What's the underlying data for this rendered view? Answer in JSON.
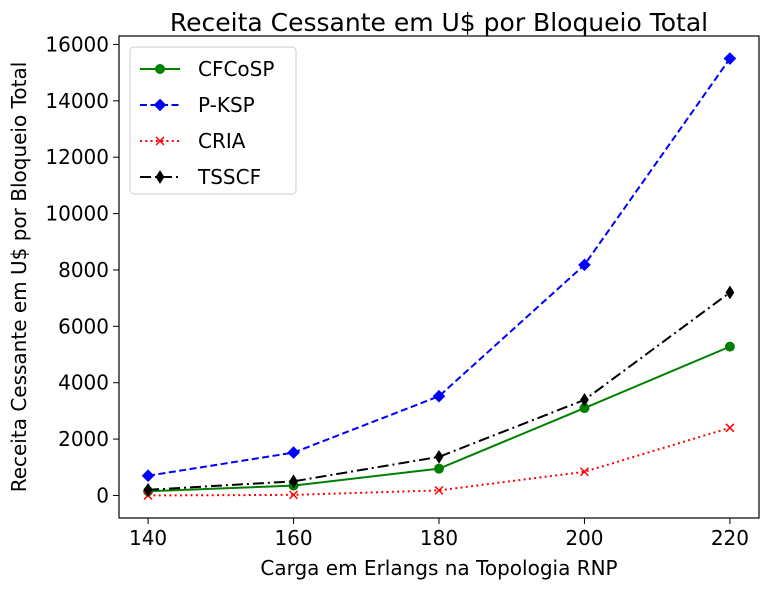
{
  "chart_data": {
    "type": "line",
    "title": "Receita Cessante em U$ por Bloqueio Total",
    "xlabel": "Carga em Erlangs na Topologia RNP",
    "ylabel": "Receita Cessante em U$ por Bloqueio Total",
    "x": [
      140,
      160,
      180,
      200,
      220
    ],
    "x_ticks": [
      "140",
      "160",
      "180",
      "200",
      "220"
    ],
    "y_ticks": [
      "0",
      "2000",
      "4000",
      "6000",
      "8000",
      "10000",
      "12000",
      "14000",
      "16000"
    ],
    "xlim": [
      136,
      224
    ],
    "ylim": [
      -800,
      16300
    ],
    "grid": false,
    "legend_position": "top-left",
    "series": [
      {
        "name": "CFCoSP",
        "values": [
          150,
          350,
          950,
          3100,
          5280
        ],
        "color": "#008000",
        "dash": "solid",
        "marker": "circle"
      },
      {
        "name": "P-KSP",
        "values": [
          700,
          1520,
          3520,
          8180,
          15500
        ],
        "color": "#0000ff",
        "dash": "dashed",
        "marker": "diamond"
      },
      {
        "name": "CRIA",
        "values": [
          0,
          20,
          180,
          840,
          2400
        ],
        "color": "#ff0000",
        "dash": "dotted",
        "marker": "x"
      },
      {
        "name": "TSSCF",
        "values": [
          200,
          500,
          1370,
          3390,
          7200
        ],
        "color": "#000000",
        "dash": "dashdot",
        "marker": "thin-diamond"
      }
    ]
  }
}
